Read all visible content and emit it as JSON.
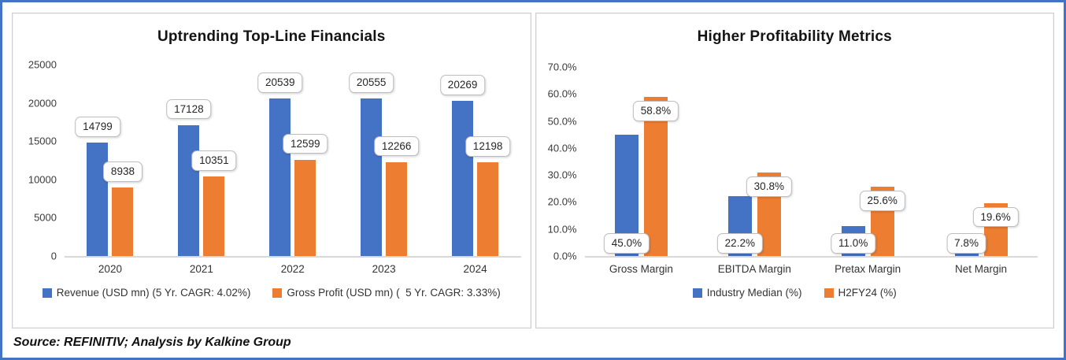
{
  "frame": {
    "border_color": "#4472C4",
    "background": "#FFFFFF"
  },
  "source": {
    "text": "Source: REFINITIV; Analysis by Kalkine Group"
  },
  "colors": {
    "bar_blue": "#4472C4",
    "bar_orange": "#ED7D31",
    "axis_line": "#D9D9D9",
    "callout_border": "#BDBDBD"
  },
  "chart_data": [
    {
      "type": "bar",
      "title": "Uptrending Top-Line Financials",
      "categories": [
        "2020",
        "2021",
        "2022",
        "2023",
        "2024"
      ],
      "series": [
        {
          "name": "Revenue (USD mn) (5 Yr. CAGR: 4.02%)",
          "color": "#4472C4",
          "values": [
            14799,
            17128,
            20539,
            20555,
            20269
          ],
          "labels": [
            "14799",
            "17128",
            "20539",
            "20555",
            "20269"
          ],
          "label_pos": "above"
        },
        {
          "name": "Gross Profit (USD mn) (  5 Yr. CAGR: 3.33%)",
          "color": "#ED7D31",
          "values": [
            8938,
            10351,
            12599,
            12266,
            12198
          ],
          "labels": [
            "8938",
            "10351",
            "12599",
            "12266",
            "12198"
          ],
          "label_pos": "above"
        }
      ],
      "ylim": [
        0,
        25000
      ],
      "ytick_labels": [
        "25000",
        "20000",
        "15000",
        "10000",
        "5000",
        "0"
      ],
      "grid": false,
      "legend_position": "bottom"
    },
    {
      "type": "bar",
      "title": "Higher Profitability Metrics",
      "categories": [
        "Gross Margin",
        "EBITDA Margin",
        "Pretax Margin",
        "Net Margin"
      ],
      "series": [
        {
          "name": "Industry Median (%)",
          "color": "#4472C4",
          "values": [
            45.0,
            22.2,
            11.0,
            7.8
          ],
          "labels": [
            "45.0%",
            "22.2%",
            "11.0%",
            "7.8%"
          ],
          "label_pos": "base"
        },
        {
          "name": "H2FY24 (%)",
          "color": "#ED7D31",
          "values": [
            58.8,
            30.8,
            25.6,
            19.6
          ],
          "labels": [
            "58.8%",
            "30.8%",
            "25.6%",
            "19.6%"
          ],
          "label_pos": "inside-top"
        }
      ],
      "ylim": [
        0,
        70
      ],
      "ytick_labels": [
        "70.0%",
        "60.0%",
        "50.0%",
        "40.0%",
        "30.0%",
        "20.0%",
        "10.0%",
        "0.0%"
      ],
      "grid": false,
      "legend_position": "bottom"
    }
  ]
}
